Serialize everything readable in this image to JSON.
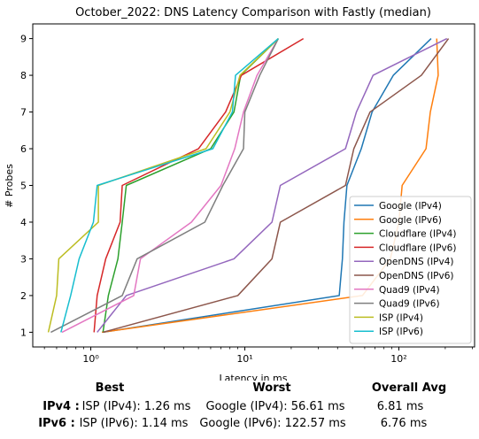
{
  "chart_data": {
    "type": "line",
    "title": "October_2022: DNS Latency Comparison with Fastly (median)",
    "xlabel": "Latency in ms",
    "ylabel": "# Probes",
    "xscale": "log",
    "xlim": [
      0.42,
      310
    ],
    "ylim": [
      0.6,
      9.4
    ],
    "xticks": [
      {
        "value": 1,
        "label": "10⁰"
      },
      {
        "value": 10,
        "label": "10¹"
      },
      {
        "value": 100,
        "label": "10²"
      }
    ],
    "yticks": [
      1,
      2,
      3,
      4,
      5,
      6,
      7,
      8,
      9
    ],
    "grid": false,
    "legend_position": "lower-right",
    "series": [
      {
        "name": "Google (IPv4)",
        "color": "#1f77b4",
        "points": [
          [
            1.2,
            1
          ],
          [
            41,
            2
          ],
          [
            43,
            3
          ],
          [
            44,
            4
          ],
          [
            46,
            5
          ],
          [
            57,
            6
          ],
          [
            67,
            7
          ],
          [
            92,
            8
          ],
          [
            162,
            9
          ]
        ]
      },
      {
        "name": "Google (IPv6)",
        "color": "#ff7f0e",
        "points": [
          [
            1.18,
            1
          ],
          [
            58,
            2
          ],
          [
            88,
            3
          ],
          [
            100,
            4
          ],
          [
            105,
            5
          ],
          [
            150,
            6
          ],
          [
            160,
            7
          ],
          [
            180,
            8
          ],
          [
            176,
            9
          ]
        ]
      },
      {
        "name": "Cloudflare (IPv4)",
        "color": "#2ca02c",
        "points": [
          [
            1.2,
            1
          ],
          [
            1.3,
            2
          ],
          [
            1.5,
            3
          ],
          [
            1.6,
            4
          ],
          [
            1.7,
            5
          ],
          [
            6,
            6
          ],
          [
            8.5,
            7
          ],
          [
            9.4,
            8
          ],
          [
            16.5,
            9
          ]
        ]
      },
      {
        "name": "Cloudflare (IPv6)",
        "color": "#d62728",
        "points": [
          [
            1.05,
            1
          ],
          [
            1.1,
            2
          ],
          [
            1.25,
            3
          ],
          [
            1.55,
            4
          ],
          [
            1.6,
            5
          ],
          [
            5,
            6
          ],
          [
            7.5,
            7
          ],
          [
            9.5,
            8
          ],
          [
            24,
            9
          ]
        ]
      },
      {
        "name": "OpenDNS (IPv4)",
        "color": "#9467bd",
        "points": [
          [
            1.1,
            1
          ],
          [
            1.7,
            2
          ],
          [
            8.5,
            3
          ],
          [
            15,
            4
          ],
          [
            17,
            5
          ],
          [
            45,
            6
          ],
          [
            53,
            7
          ],
          [
            68,
            8
          ],
          [
            205,
            9
          ]
        ]
      },
      {
        "name": "OpenDNS (IPv6)",
        "color": "#8c564b",
        "points": [
          [
            1.2,
            1
          ],
          [
            9,
            2
          ],
          [
            15,
            3
          ],
          [
            17,
            4
          ],
          [
            45,
            5
          ],
          [
            51,
            6
          ],
          [
            65,
            7
          ],
          [
            140,
            8
          ],
          [
            210,
            9
          ]
        ]
      },
      {
        "name": "Quad9 (IPv4)",
        "color": "#e377c2",
        "points": [
          [
            0.65,
            1
          ],
          [
            1.9,
            2
          ],
          [
            2.1,
            3
          ],
          [
            4.5,
            4
          ],
          [
            7,
            5
          ],
          [
            8.6,
            6
          ],
          [
            9.8,
            7
          ],
          [
            12,
            8
          ],
          [
            16.5,
            9
          ]
        ]
      },
      {
        "name": "Quad9 (IPv6)",
        "color": "#7f7f7f",
        "points": [
          [
            0.55,
            1
          ],
          [
            1.6,
            2
          ],
          [
            2,
            3
          ],
          [
            5.5,
            4
          ],
          [
            7.2,
            5
          ],
          [
            9.8,
            6
          ],
          [
            10,
            7
          ],
          [
            12.5,
            8
          ],
          [
            16.5,
            9
          ]
        ]
      },
      {
        "name": "ISP (IPv4)",
        "color": "#bcbd22",
        "points": [
          [
            0.53,
            1
          ],
          [
            0.6,
            2
          ],
          [
            0.62,
            3
          ],
          [
            1.12,
            4
          ],
          [
            1.12,
            5
          ],
          [
            5.6,
            6
          ],
          [
            8,
            7
          ],
          [
            9.3,
            8
          ],
          [
            16.5,
            9
          ]
        ]
      },
      {
        "name": "ISP (IPv6)",
        "color": "#17becf",
        "points": [
          [
            0.64,
            1
          ],
          [
            0.74,
            2
          ],
          [
            0.84,
            3
          ],
          [
            1.04,
            4
          ],
          [
            1.1,
            5
          ],
          [
            6.2,
            6
          ],
          [
            8.3,
            7
          ],
          [
            8.7,
            8
          ],
          [
            16.5,
            9
          ]
        ]
      }
    ]
  },
  "stats": {
    "header_best": "Best",
    "header_worst": "Worst",
    "header_avg": "Overall Avg",
    "rows": [
      {
        "label": "IPv4 :",
        "best": "ISP (IPv4): 1.26 ms",
        "worst": "Google (IPv4): 56.61 ms",
        "avg": "6.81 ms"
      },
      {
        "label": "IPv6 :",
        "best": "ISP (IPv6): 1.14 ms",
        "worst": "Google (IPv6): 122.57 ms",
        "avg": "6.76 ms"
      }
    ]
  }
}
